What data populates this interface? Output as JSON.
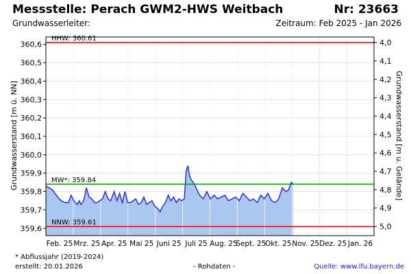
{
  "header": {
    "title": "Messstelle: Perach GWM2-HWS Weitbach",
    "number": "Nr: 23663",
    "aquifer": "Grundwasserleiter:",
    "period": "Zeitraum: Feb 2025 - Jan 2026"
  },
  "footer": {
    "footnote": "* Abflussjahr (2019-2024)",
    "created": "erstellt:  20.01.2026",
    "raw": "- Rohdaten -",
    "source": "Quelle: www.lfu.bayern.de"
  },
  "colors": {
    "area_fill": "#a9c7f0",
    "line": "#2222ee",
    "hhw": "#dd0000",
    "nnw": "#dd0000",
    "mw": "#009900",
    "grid": "#cccccc"
  },
  "chart_data": {
    "type": "area",
    "ylabel_left": "Grundwasserstand [m ü. NN]",
    "ylabel_right": "Grundwasserstand [m u. Gelände]",
    "ylim": [
      359.56,
      360.64
    ],
    "yticks": [
      "360,6",
      "360,5",
      "360,4",
      "360,3",
      "360,2",
      "360,1",
      "360,0",
      "359,9",
      "359,8",
      "359,7",
      "359,6"
    ],
    "ytick_values": [
      360.6,
      360.5,
      360.4,
      360.3,
      360.2,
      360.1,
      360.0,
      359.9,
      359.8,
      359.7,
      359.6
    ],
    "yticks_right": [
      "4,0",
      "4,1",
      "4,2",
      "4,3",
      "4,4",
      "4,5",
      "4,6",
      "4,7",
      "4,8",
      "4,9",
      "5,0"
    ],
    "ytick_right_values": [
      360.61,
      360.51,
      360.41,
      360.31,
      360.21,
      360.11,
      360.01,
      359.91,
      359.81,
      359.71,
      359.61
    ],
    "xticks": [
      "Feb. 25",
      "Mrz. 25",
      "Apr. 25",
      "Mai 25",
      "Juni 25",
      "Juli 25",
      "Aug. 25",
      "Sept. 25",
      "Okt. 25",
      "Nov. 25",
      "Dez. 25",
      "Jan. 26"
    ],
    "x_start": "2025-02-01",
    "x_end": "2026-02-01",
    "grid": true,
    "reference_lines": [
      {
        "key": "hhw",
        "label": "HHW: 360.61",
        "value": 360.61
      },
      {
        "key": "mw",
        "label": "MW*: 359.84",
        "value": 359.84
      },
      {
        "key": "nnw",
        "label": "NNW: 359.61",
        "value": 359.61
      }
    ],
    "series": [
      {
        "x": [
          "2025-02-01",
          "2025-02-05",
          "2025-02-08",
          "2025-02-11",
          "2025-02-14",
          "2025-02-18",
          "2025-02-22",
          "2025-02-26",
          "2025-03-01",
          "2025-03-04",
          "2025-03-06",
          "2025-03-08",
          "2025-03-10",
          "2025-03-12",
          "2025-03-15",
          "2025-03-18",
          "2025-03-21",
          "2025-03-24",
          "2025-03-27",
          "2025-03-30",
          "2025-04-02",
          "2025-04-05",
          "2025-04-08",
          "2025-04-11",
          "2025-04-14",
          "2025-04-18",
          "2025-04-21",
          "2025-04-24",
          "2025-04-27",
          "2025-04-30",
          "2025-05-03",
          "2025-05-06",
          "2025-05-09",
          "2025-05-12",
          "2025-05-15",
          "2025-05-18",
          "2025-05-21",
          "2025-05-24",
          "2025-05-27",
          "2025-05-30",
          "2025-06-02",
          "2025-06-05",
          "2025-06-08",
          "2025-06-11",
          "2025-06-14",
          "2025-06-17",
          "2025-06-20",
          "2025-06-23",
          "2025-06-26",
          "2025-06-29",
          "2025-07-02",
          "2025-07-05",
          "2025-07-07",
          "2025-07-09",
          "2025-07-11",
          "2025-07-13",
          "2025-07-15",
          "2025-07-18",
          "2025-07-22",
          "2025-07-26",
          "2025-07-30",
          "2025-08-03",
          "2025-08-07",
          "2025-08-11",
          "2025-08-15",
          "2025-08-19",
          "2025-08-23",
          "2025-08-27",
          "2025-08-31",
          "2025-09-04",
          "2025-09-08",
          "2025-09-12",
          "2025-09-16",
          "2025-09-20",
          "2025-09-24",
          "2025-09-28",
          "2025-10-02",
          "2025-10-06",
          "2025-10-10",
          "2025-10-14",
          "2025-10-18",
          "2025-10-22",
          "2025-10-26",
          "2025-10-29",
          "2025-11-01",
          "2025-11-03"
        ],
        "y": [
          359.83,
          359.82,
          359.81,
          359.79,
          359.77,
          359.75,
          359.74,
          359.74,
          359.78,
          359.75,
          359.74,
          359.73,
          359.75,
          359.73,
          359.75,
          359.82,
          359.77,
          359.76,
          359.74,
          359.74,
          359.75,
          359.76,
          359.8,
          359.76,
          359.75,
          359.8,
          359.75,
          359.79,
          359.74,
          359.8,
          359.74,
          359.74,
          359.75,
          359.76,
          359.73,
          359.74,
          359.77,
          359.73,
          359.74,
          359.75,
          359.72,
          359.71,
          359.69,
          359.72,
          359.74,
          359.78,
          359.75,
          359.77,
          359.74,
          359.76,
          359.75,
          359.76,
          359.91,
          359.94,
          359.88,
          359.86,
          359.85,
          359.82,
          359.78,
          359.76,
          359.8,
          359.76,
          359.78,
          359.76,
          359.77,
          359.78,
          359.75,
          359.76,
          359.77,
          359.75,
          359.79,
          359.77,
          359.75,
          359.76,
          359.74,
          359.78,
          359.76,
          359.79,
          359.75,
          359.74,
          359.76,
          359.82,
          359.8,
          359.81,
          359.85,
          359.84
        ]
      }
    ]
  }
}
